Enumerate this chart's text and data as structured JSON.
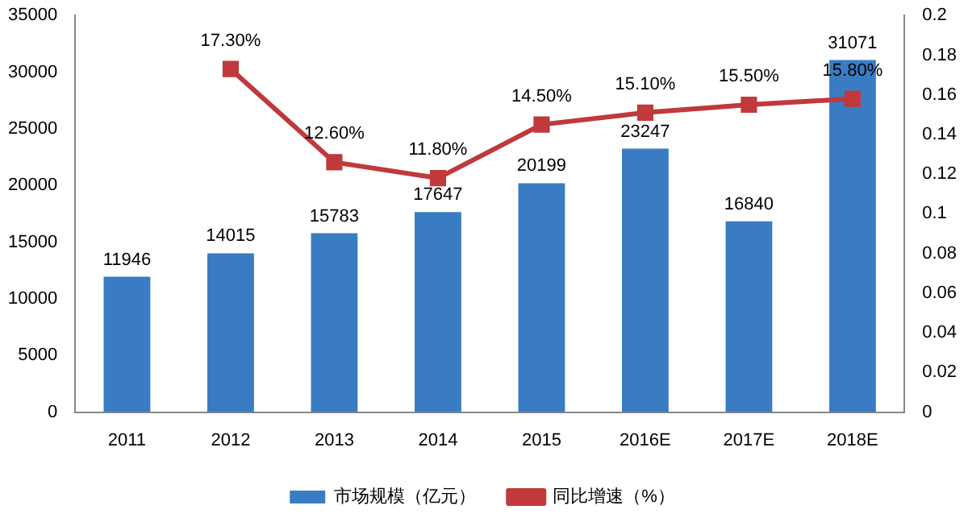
{
  "chart_data": {
    "type": "bar",
    "categories": [
      "2011",
      "2012",
      "2013",
      "2014",
      "2015",
      "2016E",
      "2017E",
      "2018E"
    ],
    "series": [
      {
        "name": "市场规模（亿元）",
        "type": "bar",
        "color": "#3a7cc4",
        "values": [
          11946,
          14015,
          15783,
          17647,
          20199,
          23247,
          16840,
          31071
        ],
        "value_labels": [
          "11946",
          "14015",
          "15783",
          "17647",
          "20199",
          "23247",
          "16840",
          "31071"
        ]
      },
      {
        "name": "同比增速（%）",
        "type": "line",
        "axis": "y2",
        "color": "#c0393b",
        "marker": "square",
        "values": [
          null,
          0.173,
          0.126,
          0.118,
          0.145,
          0.151,
          0.155,
          0.158
        ],
        "value_labels": [
          null,
          "17.30%",
          "12.60%",
          "11.80%",
          "14.50%",
          "15.10%",
          "15.50%",
          "15.80%"
        ]
      }
    ],
    "ylim": [
      0,
      35000
    ],
    "yticks": [
      0,
      5000,
      10000,
      15000,
      20000,
      25000,
      30000,
      35000
    ],
    "y2lim": [
      0,
      0.2
    ],
    "y2ticks": [
      0,
      0.02,
      0.04,
      0.06,
      0.08,
      0.1,
      0.12,
      0.14,
      0.16,
      0.18,
      0.2
    ],
    "grid": false,
    "legend": "bottom"
  }
}
